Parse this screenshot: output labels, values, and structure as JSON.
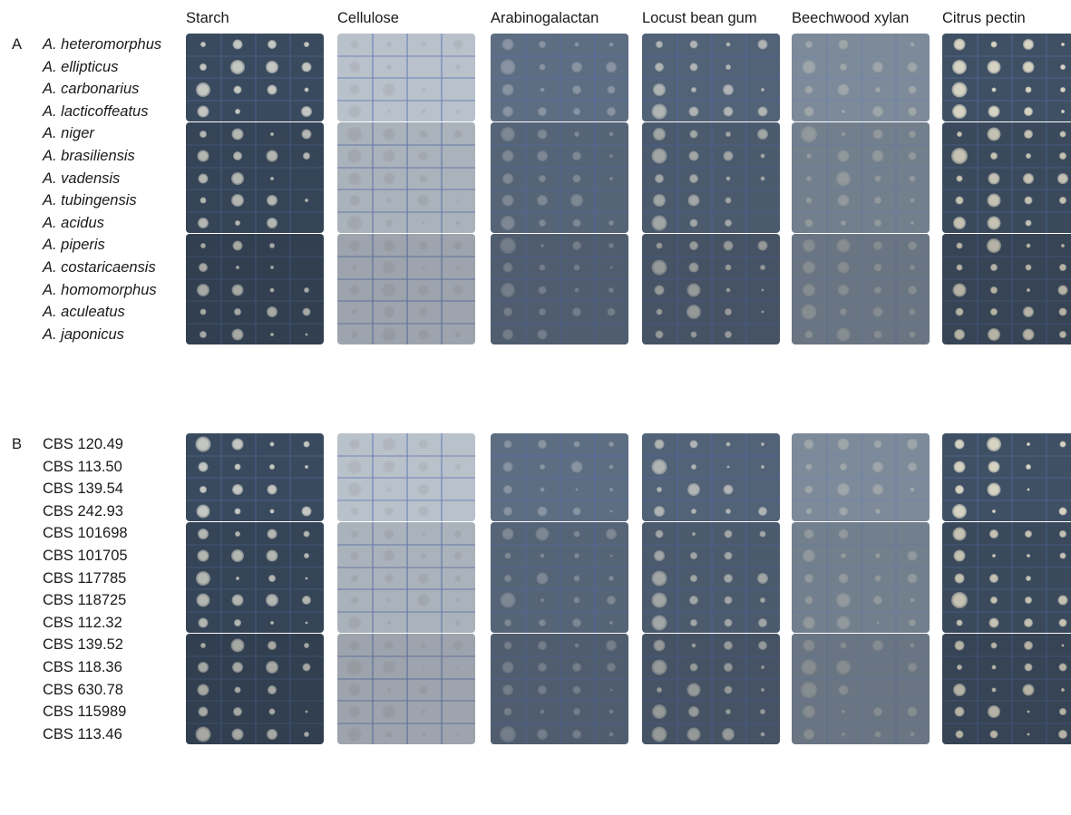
{
  "columns": [
    {
      "label": "Starch",
      "tint": "#3a4a5e",
      "line": "#4a5f88",
      "colony": "rgba(220,220,210,0.85)"
    },
    {
      "label": "Cellulose",
      "tint": "#b9c1cb",
      "line": "#6b7fb8",
      "colony": "rgba(150,150,150,0.25)"
    },
    {
      "label": "Arabinogalactan",
      "tint": "#5d6d82",
      "line": "#5a6fa6",
      "colony": "rgba(190,195,200,0.45)"
    },
    {
      "label": "Locust bean gum",
      "tint": "#526277",
      "line": "#52679c",
      "colony": "rgba(215,215,205,0.7)"
    },
    {
      "label": "Beechwood xylan",
      "tint": "#7c8a99",
      "line": "#7184a8",
      "colony": "rgba(200,200,190,0.45)"
    },
    {
      "label": "Citrus pectin",
      "tint": "#3f5064",
      "line": "#4d628e",
      "colony": "rgba(230,225,205,0.9)"
    }
  ],
  "panels": [
    {
      "letter": "A",
      "italic": true,
      "rows": [
        "A. heteromorphus",
        "A. ellipticus",
        "A. carbonarius",
        "A. lacticoffeatus",
        "A. niger",
        "A. brasiliensis",
        "A. vadensis",
        "A. tubingensis",
        "A. acidus",
        "A. piperis",
        "A. costaricaensis",
        "A. homomorphus",
        "A. aculeatus",
        "A. japonicus"
      ]
    },
    {
      "letter": "B",
      "italic": false,
      "rows": [
        "CBS 120.49",
        "CBS 113.50",
        "CBS 139.54",
        "CBS 242.93",
        "CBS 101698",
        "CBS 101705",
        "CBS 117785",
        "CBS 118725",
        "CBS 112.32",
        "CBS 139.52",
        "CBS 118.36",
        "CBS 630.78",
        "CBS 115989",
        "CBS 113.46"
      ]
    }
  ]
}
